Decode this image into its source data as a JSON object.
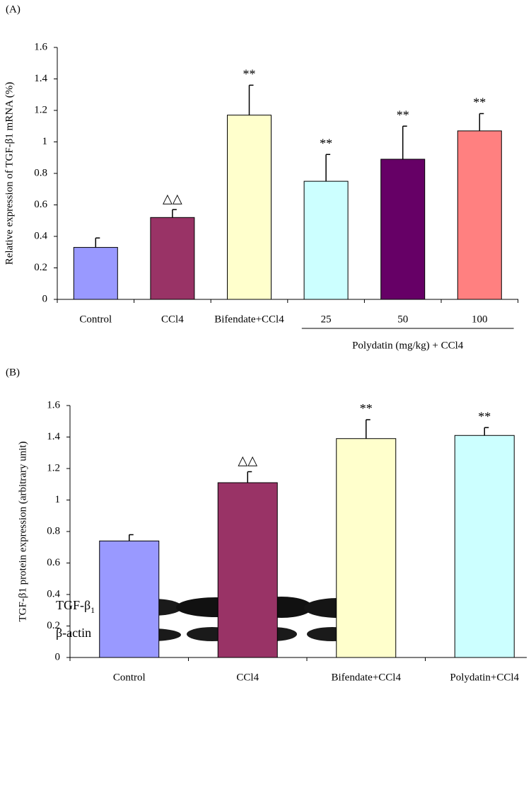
{
  "chart_data": [
    {
      "type": "bar",
      "panel_label": "(A)",
      "y_label": "Relative expression of TGF-β1 mRNA (%)",
      "categories": [
        "Control",
        "CCl4",
        "Bifendate+CCl4",
        "25",
        "50",
        "100"
      ],
      "values": [
        0.33,
        0.52,
        1.17,
        0.75,
        0.89,
        1.07
      ],
      "errors": [
        0.06,
        0.05,
        0.19,
        0.17,
        0.21,
        0.11
      ],
      "colors": [
        "#9999ff",
        "#993366",
        "#ffffcc",
        "#ccffff",
        "#660066",
        "#ff8080"
      ],
      "annotations": [
        null,
        "△△",
        "**",
        "**",
        "**",
        "**"
      ],
      "group_label": "Polydatin (mg/kg) + CCl4",
      "ylim": [
        0,
        1.6
      ],
      "yticks": [
        0,
        0.2,
        0.4,
        0.6,
        0.8,
        1,
        1.2,
        1.4,
        1.6
      ]
    },
    {
      "type": "bar",
      "panel_label": "(B)",
      "y_label": "TGF-β1 protein expression (arbitrary unit)",
      "categories": [
        "Control",
        "CCl4",
        "Bifendate+CCl4",
        "Polydatin+CCl4"
      ],
      "values": [
        0.74,
        1.11,
        1.39,
        1.41
      ],
      "errors": [
        0.04,
        0.07,
        0.12,
        0.05
      ],
      "colors": [
        "#9999ff",
        "#993366",
        "#ffffcc",
        "#ccffff"
      ],
      "annotations": [
        null,
        "△△",
        "**",
        "**"
      ],
      "ylim": [
        0,
        1.6
      ],
      "yticks": [
        0,
        0.2,
        0.4,
        0.6,
        0.8,
        1,
        1.2,
        1.4,
        1.6
      ]
    }
  ],
  "blot": {
    "rows": [
      {
        "label": "TGF-β",
        "subscript": "1"
      },
      {
        "label": "β-actin"
      }
    ]
  }
}
